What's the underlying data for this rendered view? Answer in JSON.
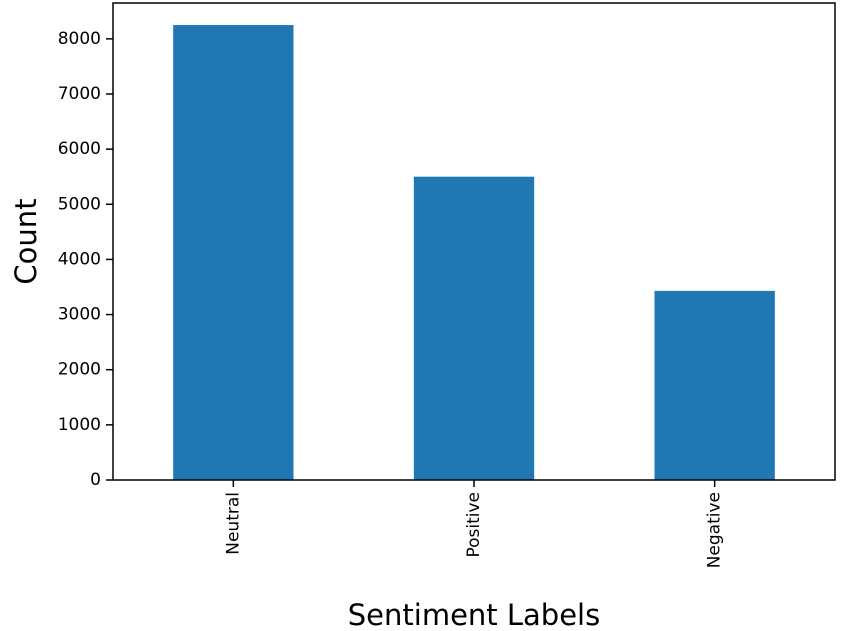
{
  "chart_data": {
    "type": "bar",
    "title": "",
    "xlabel": "Sentiment Labels",
    "ylabel": "Count",
    "categories": [
      "Neutral",
      "Positive",
      "Negative"
    ],
    "values": [
      8250,
      5500,
      3430
    ],
    "ylim": [
      0,
      8650
    ],
    "yticks": [
      0,
      1000,
      2000,
      3000,
      4000,
      5000,
      6000,
      7000,
      8000
    ],
    "bar_color": "#1f77b4",
    "grid": false,
    "legend": "none",
    "x_tick_rotation": "vertical"
  }
}
